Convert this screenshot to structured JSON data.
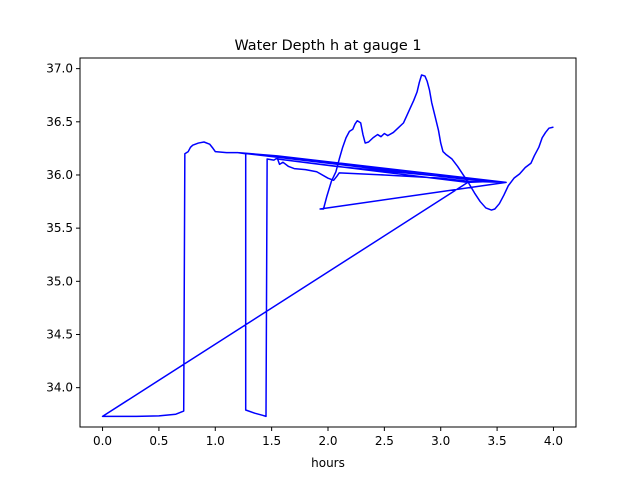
{
  "chart_data": {
    "type": "line",
    "title": "Water Depth h at gauge 1",
    "xlabel": "hours",
    "ylabel": "",
    "xlim": [
      -0.2,
      4.2
    ],
    "ylim": [
      33.63,
      37.1
    ],
    "xticks": [
      0.0,
      0.5,
      1.0,
      1.5,
      2.0,
      2.5,
      3.0,
      3.5,
      4.0
    ],
    "xtick_labels": [
      "0.0",
      "0.5",
      "1.0",
      "1.5",
      "2.0",
      "2.5",
      "3.0",
      "3.5",
      "4.0"
    ],
    "yticks": [
      34.0,
      34.5,
      35.0,
      35.5,
      36.0,
      36.5,
      37.0
    ],
    "ytick_labels": [
      "34.0",
      "34.5",
      "35.0",
      "35.5",
      "36.0",
      "36.5",
      "37.0"
    ],
    "grid": false,
    "legend": "none",
    "series": [
      {
        "color": "#0000ff",
        "points": [
          [
            0.0,
            33.73
          ],
          [
            0.3,
            33.73
          ],
          [
            0.5,
            33.735
          ],
          [
            0.65,
            33.75
          ],
          [
            0.72,
            33.78
          ],
          [
            0.73,
            36.2
          ],
          [
            0.76,
            36.22
          ],
          [
            0.78,
            36.26
          ],
          [
            0.8,
            36.28
          ],
          [
            0.85,
            36.3
          ],
          [
            0.9,
            36.31
          ],
          [
            0.95,
            36.29
          ],
          [
            0.98,
            36.25
          ],
          [
            1.0,
            36.22
          ],
          [
            1.1,
            36.21
          ],
          [
            1.2,
            36.21
          ],
          [
            1.27,
            36.2
          ],
          [
            1.27,
            33.79
          ],
          [
            1.35,
            33.76
          ],
          [
            1.42,
            33.74
          ],
          [
            1.45,
            33.73
          ],
          [
            1.46,
            36.15
          ],
          [
            1.52,
            36.14
          ],
          [
            1.55,
            36.16
          ],
          [
            1.57,
            36.1
          ],
          [
            1.6,
            36.12
          ],
          [
            1.65,
            36.08
          ],
          [
            1.7,
            36.06
          ],
          [
            1.8,
            36.05
          ],
          [
            1.9,
            36.03
          ],
          [
            2.0,
            35.97
          ],
          [
            2.05,
            35.95
          ],
          [
            2.08,
            35.99
          ],
          [
            2.1,
            36.02
          ],
          [
            2.5,
            36.0
          ],
          [
            3.0,
            35.97
          ],
          [
            3.25,
            35.94
          ],
          [
            3.58,
            35.93
          ],
          [
            1.55,
            36.18
          ],
          [
            1.2,
            36.21
          ],
          [
            3.22,
            35.96
          ],
          [
            3.58,
            35.93
          ],
          [
            2.08,
            36.08
          ],
          [
            1.55,
            36.15
          ],
          [
            3.24,
            35.93
          ],
          [
            0.0,
            33.73
          ],
          [
            3.24,
            35.93
          ],
          [
            3.45,
            35.94
          ],
          [
            3.58,
            35.93
          ],
          [
            1.93,
            35.68
          ],
          [
            1.96,
            35.68
          ],
          [
            1.99,
            35.8
          ],
          [
            2.03,
            35.94
          ],
          [
            2.07,
            36.03
          ],
          [
            2.1,
            36.15
          ],
          [
            2.13,
            36.26
          ],
          [
            2.16,
            36.35
          ],
          [
            2.19,
            36.41
          ],
          [
            2.22,
            36.43
          ],
          [
            2.24,
            36.48
          ],
          [
            2.26,
            36.51
          ],
          [
            2.29,
            36.49
          ],
          [
            2.31,
            36.38
          ],
          [
            2.33,
            36.3
          ],
          [
            2.36,
            36.31
          ],
          [
            2.4,
            36.35
          ],
          [
            2.44,
            36.38
          ],
          [
            2.47,
            36.36
          ],
          [
            2.5,
            36.39
          ],
          [
            2.53,
            36.37
          ],
          [
            2.58,
            36.4
          ],
          [
            2.62,
            36.44
          ],
          [
            2.67,
            36.49
          ],
          [
            2.7,
            36.56
          ],
          [
            2.73,
            36.63
          ],
          [
            2.76,
            36.7
          ],
          [
            2.79,
            36.78
          ],
          [
            2.81,
            36.87
          ],
          [
            2.83,
            36.94
          ],
          [
            2.86,
            36.93
          ],
          [
            2.88,
            36.88
          ],
          [
            2.9,
            36.8
          ],
          [
            2.92,
            36.68
          ],
          [
            2.95,
            36.55
          ],
          [
            2.98,
            36.42
          ],
          [
            3.0,
            36.3
          ],
          [
            3.02,
            36.22
          ],
          [
            3.05,
            36.19
          ],
          [
            3.1,
            36.15
          ],
          [
            3.15,
            36.08
          ],
          [
            3.2,
            36.0
          ],
          [
            3.25,
            35.92
          ],
          [
            3.3,
            35.83
          ],
          [
            3.35,
            35.75
          ],
          [
            3.4,
            35.69
          ],
          [
            3.45,
            35.67
          ],
          [
            3.48,
            35.68
          ],
          [
            3.52,
            35.73
          ],
          [
            3.56,
            35.81
          ],
          [
            3.6,
            35.9
          ],
          [
            3.65,
            35.97
          ],
          [
            3.7,
            36.01
          ],
          [
            3.75,
            36.07
          ],
          [
            3.8,
            36.11
          ],
          [
            3.83,
            36.18
          ],
          [
            3.87,
            36.26
          ],
          [
            3.9,
            36.35
          ],
          [
            3.93,
            36.4
          ],
          [
            3.96,
            36.44
          ],
          [
            4.0,
            36.45
          ]
        ]
      }
    ]
  }
}
